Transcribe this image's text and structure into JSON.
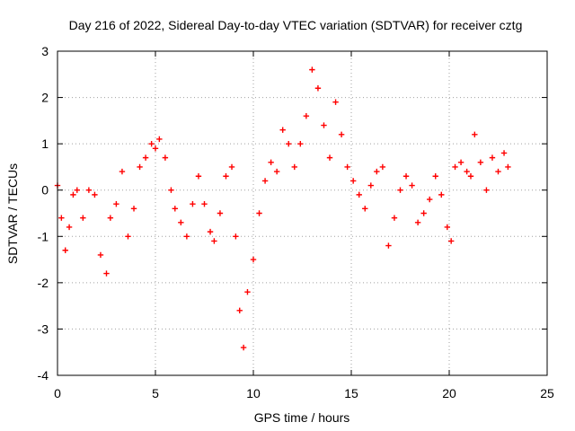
{
  "chart_data": {
    "type": "scatter",
    "title": "Day 216 of 2022, Sidereal Day-to-day VTEC variation (SDTVAR) for receiver cztg",
    "xlabel": "GPS time / hours",
    "ylabel": "SDTVAR / TECUs",
    "xlim": [
      0,
      25
    ],
    "ylim": [
      -4,
      3
    ],
    "x_ticks": [
      "0",
      "5",
      "10",
      "15",
      "20",
      "25"
    ],
    "y_ticks": [
      "-4",
      "-3",
      "-2",
      "-1",
      "0",
      "1",
      "2",
      "3"
    ],
    "grid": true,
    "marker": "+",
    "color": "#ff0000",
    "series": [
      {
        "name": "SDTVAR",
        "points": [
          [
            0.0,
            0.1
          ],
          [
            0.2,
            -0.6
          ],
          [
            0.4,
            -1.3
          ],
          [
            0.6,
            -0.8
          ],
          [
            0.8,
            -0.1
          ],
          [
            1.0,
            0.0
          ],
          [
            1.3,
            -0.6
          ],
          [
            1.6,
            0.0
          ],
          [
            1.9,
            -0.1
          ],
          [
            2.2,
            -1.4
          ],
          [
            2.5,
            -1.8
          ],
          [
            2.7,
            -0.6
          ],
          [
            3.0,
            -0.3
          ],
          [
            3.3,
            0.4
          ],
          [
            3.6,
            -1.0
          ],
          [
            3.9,
            -0.4
          ],
          [
            4.2,
            0.5
          ],
          [
            4.5,
            0.7
          ],
          [
            4.8,
            1.0
          ],
          [
            5.0,
            0.9
          ],
          [
            5.2,
            1.1
          ],
          [
            5.5,
            0.7
          ],
          [
            5.8,
            0.0
          ],
          [
            6.0,
            -0.4
          ],
          [
            6.3,
            -0.7
          ],
          [
            6.6,
            -1.0
          ],
          [
            6.9,
            -0.3
          ],
          [
            7.2,
            0.3
          ],
          [
            7.5,
            -0.3
          ],
          [
            7.8,
            -0.9
          ],
          [
            8.0,
            -1.1
          ],
          [
            8.3,
            -0.5
          ],
          [
            8.6,
            0.3
          ],
          [
            8.9,
            0.5
          ],
          [
            9.1,
            -1.0
          ],
          [
            9.3,
            -2.6
          ],
          [
            9.5,
            -3.4
          ],
          [
            9.7,
            -2.2
          ],
          [
            10.0,
            -1.5
          ],
          [
            10.3,
            -0.5
          ],
          [
            10.6,
            0.2
          ],
          [
            10.9,
            0.6
          ],
          [
            11.2,
            0.4
          ],
          [
            11.5,
            1.3
          ],
          [
            11.8,
            1.0
          ],
          [
            12.1,
            0.5
          ],
          [
            12.4,
            1.0
          ],
          [
            12.7,
            1.6
          ],
          [
            13.0,
            2.6
          ],
          [
            13.3,
            2.2
          ],
          [
            13.6,
            1.4
          ],
          [
            13.9,
            0.7
          ],
          [
            14.2,
            1.9
          ],
          [
            14.5,
            1.2
          ],
          [
            14.8,
            0.5
          ],
          [
            15.1,
            0.2
          ],
          [
            15.4,
            -0.1
          ],
          [
            15.7,
            -0.4
          ],
          [
            16.0,
            0.1
          ],
          [
            16.3,
            0.4
          ],
          [
            16.6,
            0.5
          ],
          [
            16.9,
            -1.2
          ],
          [
            17.2,
            -0.6
          ],
          [
            17.5,
            0.0
          ],
          [
            17.8,
            0.3
          ],
          [
            18.1,
            0.1
          ],
          [
            18.4,
            -0.7
          ],
          [
            18.7,
            -0.5
          ],
          [
            19.0,
            -0.2
          ],
          [
            19.3,
            0.3
          ],
          [
            19.6,
            -0.1
          ],
          [
            19.9,
            -0.8
          ],
          [
            20.1,
            -1.1
          ],
          [
            20.3,
            0.5
          ],
          [
            20.6,
            0.6
          ],
          [
            20.9,
            0.4
          ],
          [
            21.1,
            0.3
          ],
          [
            21.3,
            1.2
          ],
          [
            21.6,
            0.6
          ],
          [
            21.9,
            0.0
          ],
          [
            22.2,
            0.7
          ],
          [
            22.5,
            0.4
          ],
          [
            22.8,
            0.8
          ],
          [
            23.0,
            0.5
          ]
        ]
      }
    ]
  }
}
